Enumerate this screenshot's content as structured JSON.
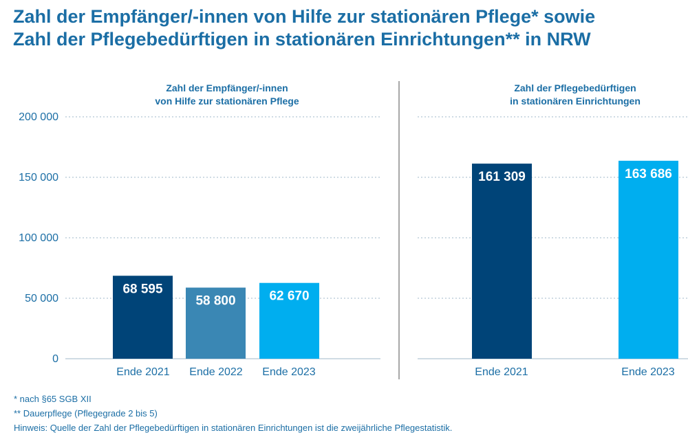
{
  "title_line1": "Zahl der Empfänger/-innen von Hilfe zur stationären Pflege* sowie",
  "title_line2": "Zahl der Pflegebedürftigen in stationären Einrichtungen** in NRW",
  "colors": {
    "title": "#1b6ea5",
    "axis_text": "#1b6ea5",
    "dark_blue": "#004478",
    "mid_blue": "#3a87b4",
    "light_blue": "#00aeef",
    "grid": "#9fb7c9",
    "divider": "#8a8a8a"
  },
  "chart_data": [
    {
      "type": "bar",
      "title_lines": [
        "Zahl der Empfänger/-innen",
        "von Hilfe zur stationären Pflege"
      ],
      "categories": [
        "Ende 2021",
        "Ende 2022",
        "Ende 2023"
      ],
      "values": [
        68595,
        58800,
        62670
      ],
      "value_labels": [
        "68 595",
        "58 800",
        "62 670"
      ],
      "bar_colors": [
        "#004478",
        "#3a87b4",
        "#00aeef"
      ],
      "y_ticks": [
        "200 000",
        "150 000",
        "100 000",
        "50 000",
        "0"
      ],
      "y_tick_values": [
        200000,
        150000,
        100000,
        50000,
        0
      ],
      "ylim": [
        0,
        200000
      ],
      "grid": true
    },
    {
      "type": "bar",
      "title_lines": [
        "Zahl der Pflegebedürftigen",
        "in stationären Einrichtungen"
      ],
      "categories": [
        "Ende 2021",
        "Ende 2023"
      ],
      "values": [
        161309,
        163686
      ],
      "value_labels": [
        "161 309",
        "163 686"
      ],
      "bar_colors": [
        "#004478",
        "#00aeef"
      ],
      "ylim": [
        0,
        200000
      ],
      "grid": true
    }
  ],
  "notes": {
    "note1": "*  nach §65 SGB XII",
    "note2": "**  Dauerpflege (Pflegegrade 2 bis 5)",
    "hint": "Hinweis: Quelle der Zahl der Pflegebedürftigen in stationären Einrichtungen ist die zweijährliche Pflegestatistik."
  }
}
